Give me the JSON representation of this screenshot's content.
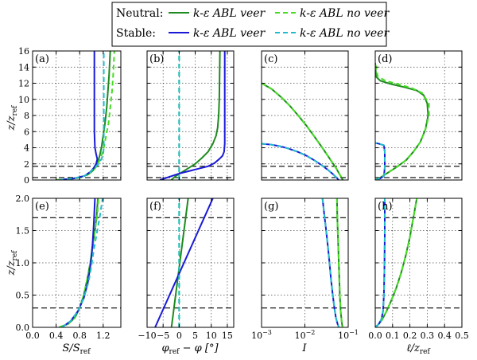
{
  "legend": {
    "rows": [
      {
        "label": "Neutral:",
        "items": [
          {
            "text": "k-ε ABL veer",
            "color": "#1f8a1f",
            "style": "solid"
          },
          {
            "text": "k-ε ABL no veer",
            "color": "#44dd22",
            "style": "dashed"
          }
        ]
      },
      {
        "label": "Stable:",
        "items": [
          {
            "text": "k-ε ABL veer",
            "color": "#1a1ad6",
            "style": "solid"
          },
          {
            "text": "k-ε ABL no veer",
            "color": "#22bbcc",
            "style": "dashed"
          }
        ]
      }
    ]
  },
  "colors": {
    "neutral_veer": "#1f8a1f",
    "neutral_noveer": "#44dd22",
    "stable_veer": "#1a1ad6",
    "stable_noveer": "#22bbcc"
  },
  "chart_data": [
    {
      "id": "a",
      "type": "line",
      "panel_label": "(a)",
      "xlim": [
        0,
        1.5
      ],
      "ylim": [
        0,
        16
      ],
      "yticks": [
        0,
        2,
        4,
        6,
        8,
        10,
        12,
        14,
        16
      ],
      "ylabel": "z/z_ref",
      "hlines": [
        0.3,
        1.7
      ],
      "series": [
        {
          "name": "Neutral veer",
          "x": [
            0.4,
            0.6,
            0.8,
            0.95,
            1.03,
            1.08,
            1.11,
            1.14,
            1.17,
            1.2,
            1.23,
            1.26,
            1.28,
            1.3,
            1.31,
            1.32
          ],
          "y": [
            0,
            0.1,
            0.3,
            0.7,
            1.2,
            1.7,
            2.3,
            3,
            4,
            5.5,
            7,
            9,
            11,
            13,
            14.5,
            16
          ]
        },
        {
          "name": "Neutral no veer",
          "x": [
            0.4,
            0.6,
            0.8,
            0.95,
            1.03,
            1.09,
            1.13,
            1.17,
            1.21,
            1.25,
            1.29,
            1.32,
            1.35,
            1.37,
            1.38,
            1.39
          ],
          "y": [
            0,
            0.1,
            0.3,
            0.7,
            1.2,
            1.7,
            2.3,
            3,
            4,
            5.5,
            7,
            9,
            11,
            13,
            14.5,
            16
          ]
        },
        {
          "name": "Stable veer",
          "x": [
            0.45,
            0.7,
            0.88,
            0.98,
            1.04,
            1.08,
            1.1,
            1.08,
            1.06,
            1.05,
            1.05,
            1.05
          ],
          "y": [
            0,
            0.2,
            0.5,
            1,
            1.5,
            2,
            2.6,
            3.2,
            4,
            6,
            10,
            16
          ]
        },
        {
          "name": "Stable no veer",
          "x": [
            0.45,
            0.7,
            0.88,
            0.98,
            1.05,
            1.12,
            1.17,
            1.2,
            1.21,
            1.21,
            1.21,
            1.21
          ],
          "y": [
            0,
            0.2,
            0.5,
            1,
            1.5,
            2,
            2.6,
            3.2,
            4,
            6,
            10,
            16
          ]
        }
      ]
    },
    {
      "id": "b",
      "type": "line",
      "panel_label": "(b)",
      "xlim": [
        -10,
        17
      ],
      "ylim": [
        0,
        16
      ],
      "yticks": [
        0,
        2,
        4,
        6,
        8,
        10,
        12,
        14,
        16
      ],
      "hlines": [
        0.3,
        1.7
      ],
      "series": [
        {
          "name": "Neutral veer",
          "x": [
            -2.5,
            -1,
            1,
            3,
            5,
            7,
            9,
            10.5,
            11.5,
            12,
            12.3,
            12.5,
            12.6,
            12.7
          ],
          "y": [
            0,
            0.5,
            1,
            1.5,
            2,
            2.7,
            3.5,
            4.5,
            5.5,
            6.5,
            8,
            10,
            13,
            16
          ]
        },
        {
          "name": "Neutral no veer",
          "x": [
            0,
            0,
            0
          ],
          "y": [
            0,
            8,
            16
          ]
        },
        {
          "name": "Stable veer",
          "x": [
            -6,
            -3,
            0,
            3,
            6,
            9,
            11,
            12.5,
            13.5,
            14,
            14.2,
            14.2,
            14.2
          ],
          "y": [
            0,
            0.4,
            0.8,
            1.1,
            1.4,
            1.7,
            2.1,
            2.6,
            3,
            3.5,
            4.5,
            10,
            16
          ]
        },
        {
          "name": "Stable no veer",
          "x": [
            0,
            0,
            0
          ],
          "y": [
            0,
            8,
            16
          ]
        }
      ]
    },
    {
      "id": "c",
      "type": "line",
      "panel_label": "(c)",
      "xscale": "log",
      "xlim": [
        0.001,
        0.1
      ],
      "ylim": [
        0,
        16
      ],
      "yticks": [
        0,
        2,
        4,
        6,
        8,
        10,
        12,
        14,
        16
      ],
      "hlines": [
        0.3,
        1.7
      ],
      "series": [
        {
          "name": "Neutral veer",
          "x": [
            0.001,
            0.0017,
            0.0028,
            0.0045,
            0.007,
            0.011,
            0.017,
            0.026,
            0.038,
            0.052,
            0.065,
            0.075
          ],
          "y": [
            12,
            11.3,
            10.3,
            9.2,
            8,
            6.7,
            5.3,
            3.9,
            2.6,
            1.5,
            0.6,
            0
          ]
        },
        {
          "name": "Neutral no veer",
          "x": [
            0.001,
            0.0017,
            0.0028,
            0.0045,
            0.007,
            0.011,
            0.017,
            0.026,
            0.038,
            0.052,
            0.065,
            0.075
          ],
          "y": [
            12,
            11.3,
            10.3,
            9.2,
            8,
            6.7,
            5.3,
            3.9,
            2.6,
            1.5,
            0.6,
            0
          ]
        },
        {
          "name": "Stable veer",
          "x": [
            0.001,
            0.0016,
            0.0026,
            0.0042,
            0.0068,
            0.011,
            0.017,
            0.025,
            0.035,
            0.045,
            0.055,
            0.06
          ],
          "y": [
            4.5,
            4.4,
            4.2,
            3.9,
            3.5,
            3,
            2.4,
            1.8,
            1.2,
            0.7,
            0.25,
            0
          ]
        },
        {
          "name": "Stable no veer",
          "x": [
            0.001,
            0.0016,
            0.0026,
            0.0042,
            0.0068,
            0.011,
            0.017,
            0.025,
            0.035,
            0.045,
            0.055,
            0.06
          ],
          "y": [
            4.5,
            4.4,
            4.2,
            3.9,
            3.5,
            3,
            2.4,
            1.8,
            1.2,
            0.7,
            0.25,
            0
          ]
        }
      ]
    },
    {
      "id": "d",
      "type": "line",
      "panel_label": "(d)",
      "xlim": [
        0,
        0.5
      ],
      "ylim": [
        0,
        16
      ],
      "yticks": [
        0,
        2,
        4,
        6,
        8,
        10,
        12,
        14,
        16
      ],
      "hlines": [
        0.3,
        1.7
      ],
      "series": [
        {
          "name": "Neutral veer",
          "x": [
            0,
            0.03,
            0.08,
            0.13,
            0.18,
            0.22,
            0.26,
            0.29,
            0.305,
            0.3,
            0.28,
            0.24,
            0.17,
            0.09,
            0.03,
            0.005,
            0
          ],
          "y": [
            0,
            0.3,
            1,
            1.7,
            2.5,
            3.5,
            4.7,
            6.3,
            8,
            9.5,
            10.5,
            11.1,
            11.5,
            11.9,
            12.3,
            12.8,
            14.5
          ]
        },
        {
          "name": "Neutral no veer",
          "x": [
            0,
            0.03,
            0.08,
            0.13,
            0.18,
            0.22,
            0.26,
            0.29,
            0.31,
            0.31,
            0.27,
            0.21,
            0.13,
            0.06,
            0.015,
            0
          ],
          "y": [
            0,
            0.3,
            1,
            1.7,
            2.5,
            3.5,
            4.7,
            6.3,
            8,
            9.5,
            10.8,
            11.4,
            11.9,
            12.3,
            12.8,
            14.5
          ]
        },
        {
          "name": "Stable veer",
          "x": [
            0,
            0.03,
            0.05,
            0.055,
            0.055,
            0.05,
            0.02,
            0
          ],
          "y": [
            0,
            0.2,
            0.5,
            1.5,
            3.5,
            4.3,
            4.5,
            4.6
          ]
        },
        {
          "name": "Stable no veer",
          "x": [
            0,
            0.03,
            0.05,
            0.055,
            0.055,
            0.05,
            0.02,
            0
          ],
          "y": [
            0,
            0.2,
            0.5,
            1.5,
            3.5,
            4.3,
            4.5,
            4.6
          ]
        }
      ]
    },
    {
      "id": "e",
      "type": "line",
      "panel_label": "(e)",
      "xlim": [
        0,
        1.5
      ],
      "ylim": [
        0,
        2
      ],
      "yticks": [
        0,
        0.5,
        1,
        1.5,
        2
      ],
      "ylabel": "z/z_ref",
      "xlabel": "S/S_ref",
      "hlines": [
        0.3,
        1.7
      ],
      "series": [
        {
          "name": "Neutral veer",
          "x": [
            0.45,
            0.6,
            0.72,
            0.8,
            0.87,
            0.93,
            0.98,
            1.02,
            1.06,
            1.09,
            1.11
          ],
          "y": [
            0,
            0.05,
            0.15,
            0.3,
            0.5,
            0.75,
            1,
            1.25,
            1.5,
            1.75,
            2
          ]
        },
        {
          "name": "Neutral no veer",
          "x": [
            0.45,
            0.6,
            0.72,
            0.8,
            0.87,
            0.93,
            0.98,
            1.02,
            1.06,
            1.1,
            1.12
          ],
          "y": [
            0,
            0.05,
            0.15,
            0.3,
            0.5,
            0.75,
            1,
            1.25,
            1.5,
            1.75,
            2
          ]
        },
        {
          "name": "Stable veer",
          "x": [
            0.5,
            0.65,
            0.77,
            0.87,
            0.94,
            0.99,
            1.02,
            1.04,
            1.05,
            1.06
          ],
          "y": [
            0,
            0.1,
            0.25,
            0.45,
            0.7,
            1,
            1.3,
            1.6,
            1.8,
            2
          ]
        },
        {
          "name": "Stable no veer",
          "x": [
            0.5,
            0.65,
            0.77,
            0.87,
            0.95,
            1.0,
            1.04,
            1.09,
            1.14,
            1.19
          ],
          "y": [
            0,
            0.1,
            0.25,
            0.45,
            0.7,
            0.95,
            1.2,
            1.45,
            1.7,
            2
          ]
        }
      ]
    },
    {
      "id": "f",
      "type": "line",
      "panel_label": "(f)",
      "xlim": [
        -10,
        17
      ],
      "ylim": [
        0,
        2
      ],
      "yticks": [
        0,
        0.5,
        1,
        1.5,
        2
      ],
      "xlabel": "φ_ref − φ [°]",
      "hlines": [
        0.3,
        1.7
      ],
      "series": [
        {
          "name": "Neutral veer",
          "x": [
            -2.4,
            2.8
          ],
          "y": [
            0,
            2
          ]
        },
        {
          "name": "Neutral no veer",
          "x": [
            0,
            0
          ],
          "y": [
            0,
            2
          ]
        },
        {
          "name": "Stable veer",
          "x": [
            -7.5,
            10.5
          ],
          "y": [
            0,
            2
          ]
        },
        {
          "name": "Stable no veer",
          "x": [
            0,
            0
          ],
          "y": [
            0,
            2
          ]
        }
      ]
    },
    {
      "id": "g",
      "type": "line",
      "panel_label": "(g)",
      "xscale": "log",
      "xlim": [
        0.001,
        0.1
      ],
      "ylim": [
        0,
        2
      ],
      "yticks": [
        0,
        0.5,
        1,
        1.5,
        2
      ],
      "xlabel": "I",
      "hlines": [
        0.3,
        1.7
      ],
      "series": [
        {
          "name": "Neutral veer",
          "x": [
            0.055,
            0.056,
            0.058,
            0.06,
            0.062,
            0.064,
            0.067,
            0.071,
            0.074
          ],
          "y": [
            2,
            1.7,
            1.4,
            1.1,
            0.8,
            0.5,
            0.25,
            0.08,
            0
          ]
        },
        {
          "name": "Neutral no veer",
          "x": [
            0.055,
            0.056,
            0.058,
            0.06,
            0.062,
            0.064,
            0.067,
            0.071,
            0.074
          ],
          "y": [
            2,
            1.7,
            1.4,
            1.1,
            0.8,
            0.5,
            0.25,
            0.08,
            0
          ]
        },
        {
          "name": "Stable veer",
          "x": [
            0.0255,
            0.028,
            0.031,
            0.034,
            0.037,
            0.04,
            0.044,
            0.048,
            0.052,
            0.057,
            0.061
          ],
          "y": [
            2,
            1.75,
            1.5,
            1.25,
            1,
            0.75,
            0.5,
            0.3,
            0.15,
            0.05,
            0
          ]
        },
        {
          "name": "Stable no veer",
          "x": [
            0.0255,
            0.028,
            0.031,
            0.034,
            0.037,
            0.04,
            0.044,
            0.048,
            0.052,
            0.057,
            0.061
          ],
          "y": [
            2,
            1.75,
            1.5,
            1.25,
            1,
            0.75,
            0.5,
            0.3,
            0.15,
            0.05,
            0
          ]
        }
      ]
    },
    {
      "id": "h",
      "type": "line",
      "panel_label": "(h)",
      "xlim": [
        0,
        0.5
      ],
      "ylim": [
        0,
        2
      ],
      "yticks": [
        0,
        0.5,
        1,
        1.5,
        2
      ],
      "xticks": [
        0,
        0.1,
        0.2,
        0.3,
        0.4,
        0.5
      ],
      "xlabel": "ℓ/z_ref",
      "hlines": [
        0.3,
        1.7
      ],
      "series": [
        {
          "name": "Neutral veer",
          "x": [
            0,
            0.02,
            0.04,
            0.065,
            0.09,
            0.12,
            0.15,
            0.175,
            0.2,
            0.22,
            0.24
          ],
          "y": [
            0,
            0.05,
            0.12,
            0.25,
            0.4,
            0.6,
            0.85,
            1.1,
            1.4,
            1.7,
            2
          ]
        },
        {
          "name": "Neutral no veer",
          "x": [
            0,
            0.02,
            0.04,
            0.065,
            0.09,
            0.12,
            0.15,
            0.175,
            0.2,
            0.22,
            0.24
          ],
          "y": [
            0,
            0.05,
            0.12,
            0.25,
            0.4,
            0.6,
            0.85,
            1.1,
            1.4,
            1.7,
            2
          ]
        },
        {
          "name": "Stable veer",
          "x": [
            0,
            0.02,
            0.035,
            0.045,
            0.05,
            0.053,
            0.055,
            0.055
          ],
          "y": [
            0,
            0.05,
            0.12,
            0.25,
            0.5,
            0.9,
            1.4,
            2
          ]
        },
        {
          "name": "Stable no veer",
          "x": [
            0,
            0.02,
            0.035,
            0.045,
            0.05,
            0.053,
            0.055,
            0.055
          ],
          "y": [
            0,
            0.05,
            0.12,
            0.25,
            0.5,
            0.9,
            1.4,
            2
          ]
        }
      ]
    }
  ]
}
